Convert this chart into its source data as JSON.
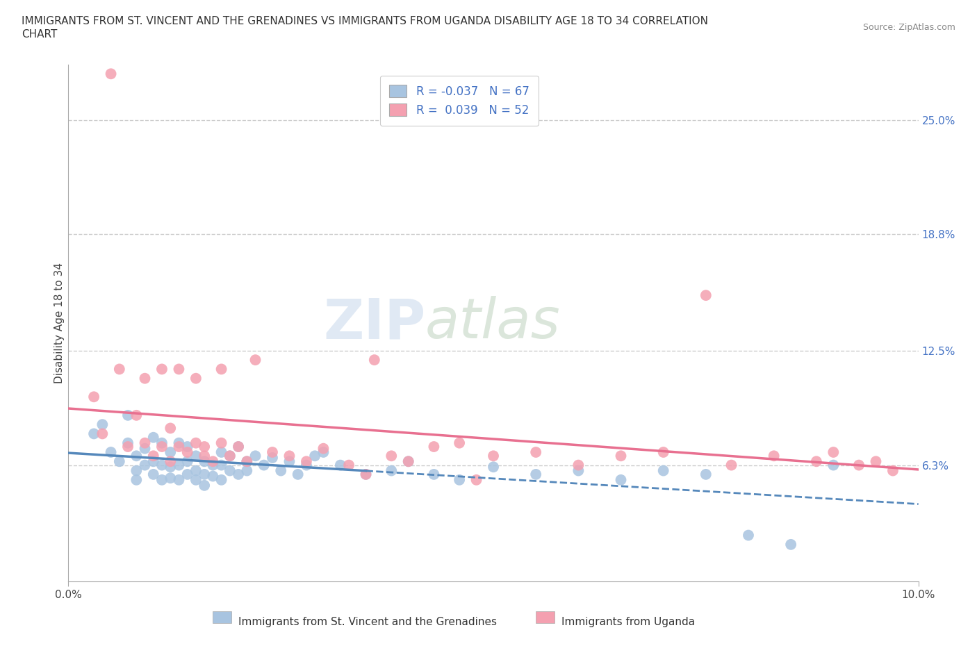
{
  "title_line1": "IMMIGRANTS FROM ST. VINCENT AND THE GRENADINES VS IMMIGRANTS FROM UGANDA DISABILITY AGE 18 TO 34 CORRELATION",
  "title_line2": "CHART",
  "source_text": "Source: ZipAtlas.com",
  "ylabel": "Disability Age 18 to 34",
  "x_min": 0.0,
  "x_max": 0.1,
  "y_min": 0.0,
  "y_max": 0.28,
  "y_ticks_right": [
    0.063,
    0.125,
    0.188,
    0.25
  ],
  "y_tick_labels_right": [
    "6.3%",
    "12.5%",
    "18.8%",
    "25.0%"
  ],
  "color_blue": "#a8c4e0",
  "color_pink": "#f4a0b0",
  "line_color_blue": "#5588bb",
  "line_color_pink": "#e87090",
  "R_blue": -0.037,
  "N_blue": 67,
  "R_pink": 0.039,
  "N_pink": 52,
  "legend_label_blue": "Immigrants from St. Vincent and the Grenadines",
  "legend_label_pink": "Immigrants from Uganda",
  "scatter_blue_x": [
    0.003,
    0.004,
    0.005,
    0.006,
    0.007,
    0.007,
    0.008,
    0.008,
    0.008,
    0.009,
    0.009,
    0.01,
    0.01,
    0.01,
    0.011,
    0.011,
    0.011,
    0.012,
    0.012,
    0.012,
    0.013,
    0.013,
    0.013,
    0.014,
    0.014,
    0.014,
    0.015,
    0.015,
    0.015,
    0.016,
    0.016,
    0.016,
    0.017,
    0.017,
    0.018,
    0.018,
    0.018,
    0.019,
    0.019,
    0.02,
    0.02,
    0.021,
    0.021,
    0.022,
    0.023,
    0.024,
    0.025,
    0.026,
    0.027,
    0.028,
    0.029,
    0.03,
    0.032,
    0.035,
    0.038,
    0.04,
    0.043,
    0.046,
    0.05,
    0.055,
    0.06,
    0.065,
    0.07,
    0.075,
    0.08,
    0.085,
    0.09
  ],
  "scatter_blue_y": [
    0.08,
    0.085,
    0.07,
    0.065,
    0.09,
    0.075,
    0.068,
    0.06,
    0.055,
    0.072,
    0.063,
    0.078,
    0.065,
    0.058,
    0.075,
    0.063,
    0.055,
    0.07,
    0.062,
    0.056,
    0.075,
    0.063,
    0.055,
    0.073,
    0.065,
    0.058,
    0.068,
    0.06,
    0.055,
    0.065,
    0.058,
    0.052,
    0.063,
    0.057,
    0.07,
    0.063,
    0.055,
    0.068,
    0.06,
    0.073,
    0.058,
    0.065,
    0.06,
    0.068,
    0.063,
    0.067,
    0.06,
    0.065,
    0.058,
    0.063,
    0.068,
    0.07,
    0.063,
    0.058,
    0.06,
    0.065,
    0.058,
    0.055,
    0.062,
    0.058,
    0.06,
    0.055,
    0.06,
    0.058,
    0.025,
    0.02,
    0.063
  ],
  "scatter_pink_x": [
    0.003,
    0.004,
    0.006,
    0.007,
    0.008,
    0.009,
    0.009,
    0.01,
    0.011,
    0.011,
    0.012,
    0.013,
    0.013,
    0.014,
    0.015,
    0.015,
    0.016,
    0.016,
    0.017,
    0.018,
    0.018,
    0.019,
    0.02,
    0.021,
    0.022,
    0.024,
    0.026,
    0.028,
    0.03,
    0.033,
    0.036,
    0.038,
    0.04,
    0.043,
    0.046,
    0.05,
    0.055,
    0.06,
    0.065,
    0.07,
    0.075,
    0.078,
    0.083,
    0.088,
    0.09,
    0.093,
    0.095,
    0.097,
    0.005,
    0.012,
    0.035,
    0.048
  ],
  "scatter_pink_y": [
    0.1,
    0.08,
    0.115,
    0.073,
    0.09,
    0.075,
    0.11,
    0.068,
    0.073,
    0.115,
    0.065,
    0.073,
    0.115,
    0.07,
    0.075,
    0.11,
    0.068,
    0.073,
    0.065,
    0.075,
    0.115,
    0.068,
    0.073,
    0.065,
    0.12,
    0.07,
    0.068,
    0.065,
    0.072,
    0.063,
    0.12,
    0.068,
    0.065,
    0.073,
    0.075,
    0.068,
    0.07,
    0.063,
    0.068,
    0.07,
    0.155,
    0.063,
    0.068,
    0.065,
    0.07,
    0.063,
    0.065,
    0.06,
    0.275,
    0.083,
    0.058,
    0.055
  ],
  "watermark_zip": "ZIP",
  "watermark_atlas": "atlas",
  "background_color": "#ffffff",
  "grid_color": "#cccccc"
}
